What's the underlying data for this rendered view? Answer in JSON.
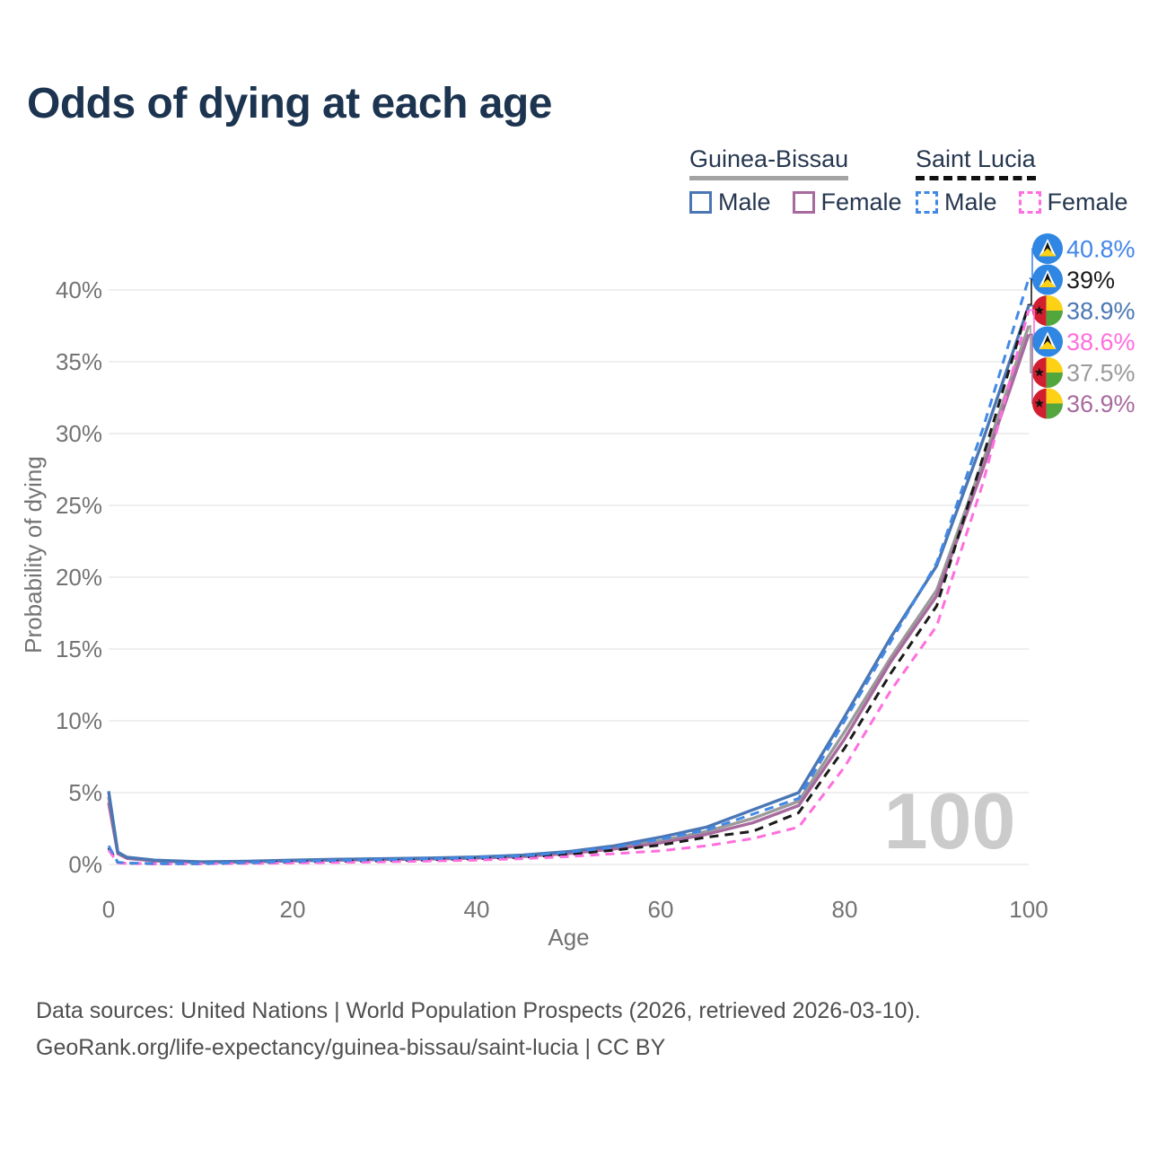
{
  "title": "Odds of dying at each age",
  "legend": {
    "groups": [
      {
        "label": "Guinea-Bissau",
        "line_style": "solid",
        "underline_color": "#a3a3a3",
        "items": [
          {
            "label": "Male",
            "series": "gb_male"
          },
          {
            "label": "Female",
            "series": "gb_female"
          }
        ]
      },
      {
        "label": "Saint Lucia",
        "line_style": "dashed",
        "underline_color": "#111111",
        "items": [
          {
            "label": "Male",
            "series": "sl_male"
          },
          {
            "label": "Female",
            "series": "sl_female"
          }
        ]
      }
    ]
  },
  "chart_data": {
    "type": "line",
    "title": "Odds of dying at each age",
    "xlabel": "Age",
    "ylabel": "Probability of dying",
    "x_ticks": [
      0,
      20,
      40,
      60,
      80,
      100
    ],
    "y_ticks": [
      "0%",
      "5%",
      "10%",
      "15%",
      "20%",
      "25%",
      "30%",
      "35%",
      "40%"
    ],
    "xlim": [
      0,
      100
    ],
    "ylim": [
      0,
      43.5
    ],
    "grid": "horizontal",
    "legend_position": "top-right",
    "watermark": "100",
    "x": [
      0,
      1,
      2,
      5,
      10,
      15,
      20,
      25,
      30,
      35,
      40,
      45,
      50,
      55,
      60,
      65,
      70,
      75,
      80,
      85,
      90,
      95,
      100
    ],
    "series": [
      {
        "key": "gb_total",
        "name": "Guinea-Bissau",
        "color": "#9a9a9a",
        "dash": false,
        "values": [
          4.7,
          0.8,
          0.45,
          0.27,
          0.16,
          0.2,
          0.28,
          0.33,
          0.37,
          0.42,
          0.48,
          0.6,
          0.83,
          1.18,
          1.65,
          2.3,
          3.2,
          4.4,
          9.25,
          14.4,
          19.1,
          28.0,
          37.5
        ]
      },
      {
        "key": "gb_female",
        "name": "Guinea-Bissau Female",
        "color": "#a86a9e",
        "dash": false,
        "values": [
          4.3,
          0.75,
          0.42,
          0.25,
          0.14,
          0.18,
          0.25,
          0.3,
          0.34,
          0.38,
          0.44,
          0.55,
          0.76,
          1.08,
          1.5,
          2.1,
          2.9,
          4.1,
          8.75,
          14.1,
          18.7,
          27.5,
          36.9
        ]
      },
      {
        "key": "gb_male",
        "name": "Guinea-Bissau Male",
        "color": "#4a77b4",
        "dash": false,
        "values": [
          5.1,
          0.85,
          0.5,
          0.3,
          0.18,
          0.22,
          0.3,
          0.36,
          0.4,
          0.45,
          0.52,
          0.65,
          0.9,
          1.3,
          1.9,
          2.6,
          3.8,
          5.0,
          10.3,
          15.8,
          20.8,
          29.5,
          38.9
        ]
      },
      {
        "key": "sl_total",
        "name": "Saint Lucia",
        "color": "#1a1a1a",
        "dash": true,
        "values": [
          1.15,
          0.13,
          0.08,
          0.05,
          0.05,
          0.1,
          0.17,
          0.22,
          0.26,
          0.32,
          0.4,
          0.5,
          0.7,
          1.0,
          1.35,
          1.9,
          2.3,
          3.6,
          8.1,
          13.3,
          18.0,
          28.3,
          39.0
        ]
      },
      {
        "key": "sl_female",
        "name": "Saint Lucia Female",
        "color": "#ff6ede",
        "dash": true,
        "values": [
          1.0,
          0.11,
          0.07,
          0.04,
          0.05,
          0.07,
          0.1,
          0.14,
          0.18,
          0.24,
          0.3,
          0.4,
          0.55,
          0.75,
          0.95,
          1.3,
          1.8,
          2.6,
          6.8,
          12.1,
          16.6,
          26.5,
          38.6
        ]
      },
      {
        "key": "sl_male",
        "name": "Saint Lucia Male",
        "color": "#4289e6",
        "dash": true,
        "values": [
          1.3,
          0.15,
          0.1,
          0.06,
          0.06,
          0.12,
          0.22,
          0.28,
          0.33,
          0.4,
          0.48,
          0.6,
          0.85,
          1.2,
          1.75,
          2.4,
          3.5,
          4.6,
          10.0,
          15.5,
          21.0,
          30.3,
          40.8
        ]
      }
    ],
    "end_labels": [
      {
        "text": "40.8%",
        "value": 40.8,
        "color": "#4285e8",
        "flag": "saint-lucia",
        "series": "sl_male"
      },
      {
        "text": "39%",
        "value": 39.0,
        "color": "#1a1a1a",
        "flag": "saint-lucia",
        "series": "sl_total"
      },
      {
        "text": "38.9%",
        "value": 38.9,
        "color": "#4a77b4",
        "flag": "guinea-bissau",
        "series": "gb_male"
      },
      {
        "text": "38.6%",
        "value": 38.6,
        "color": "#ff6ede",
        "flag": "saint-lucia",
        "series": "sl_female"
      },
      {
        "text": "37.5%",
        "value": 37.5,
        "color": "#9a9a9a",
        "flag": "guinea-bissau",
        "series": "gb_total"
      },
      {
        "text": "36.9%",
        "value": 36.9,
        "color": "#a86a9e",
        "flag": "guinea-bissau",
        "series": "gb_female"
      }
    ]
  },
  "footer": {
    "line1": "Data sources: United Nations | World Population Prospects (2026, retrieved 2026-03-10).",
    "line2": "GeoRank.org/life-expectancy/guinea-bissau/saint-lucia | CC BY"
  }
}
